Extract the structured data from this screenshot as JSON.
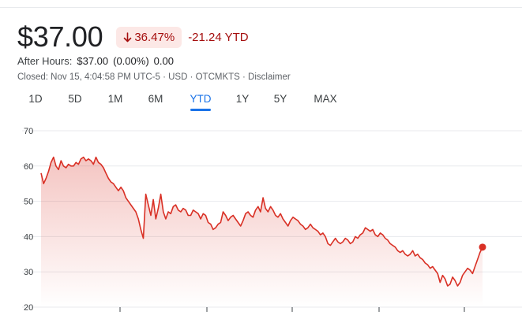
{
  "quote": {
    "price": "$37.00",
    "percent_change": "36.47%",
    "ytd_change": "-21.24 YTD",
    "after_hours_label": "After Hours:",
    "after_hours_price": "$37.00",
    "after_hours_percent": "(0.00%)",
    "after_hours_change": "0.00",
    "closed_text": "Closed: Nov 15, 4:04:58 PM UTC-5 · USD · OTCMKTS · ",
    "disclaimer": "Disclaimer",
    "down_color": "#a50e0e"
  },
  "range_tabs": [
    {
      "label": "1D",
      "active": false
    },
    {
      "label": "5D",
      "active": false
    },
    {
      "label": "1M",
      "active": false
    },
    {
      "label": "6M",
      "active": false
    },
    {
      "label": "YTD",
      "active": true
    },
    {
      "label": "1Y",
      "active": false
    },
    {
      "label": "5Y",
      "active": false
    },
    {
      "label": "MAX",
      "active": false
    }
  ],
  "chart_data": {
    "type": "area",
    "title": "",
    "xlabel": "",
    "ylabel": "",
    "ylim": [
      20,
      70
    ],
    "yticks": [
      "70",
      "60",
      "50",
      "40",
      "30",
      "20"
    ],
    "grid": true,
    "line_color": "#d93025",
    "y": [
      58,
      55,
      56.5,
      58.5,
      61,
      62.5,
      60,
      59,
      61.5,
      60,
      59.5,
      60.5,
      60,
      60,
      61,
      60.5,
      62,
      62.5,
      61.5,
      62,
      61.5,
      60.5,
      62.5,
      61,
      60.5,
      59.5,
      58,
      56.5,
      55.5,
      55,
      54,
      53,
      54,
      53,
      51,
      50,
      49,
      48,
      47,
      45,
      42,
      39.5,
      52,
      49,
      46,
      50.5,
      45,
      48,
      52,
      47,
      45,
      47,
      46.5,
      48.5,
      49,
      47.5,
      47,
      48,
      47.5,
      46,
      46,
      47.5,
      47,
      46.5,
      45,
      46.5,
      46,
      44,
      43.5,
      42,
      42.5,
      43.5,
      44,
      47,
      46,
      44.5,
      45.5,
      46,
      45,
      44,
      43,
      44.5,
      46.5,
      47,
      46,
      45.5,
      47.5,
      48.5,
      47,
      51,
      48,
      47,
      48.5,
      47.5,
      46,
      45.5,
      46.5,
      45,
      44,
      43,
      44.5,
      45.5,
      45,
      44.5,
      43.5,
      43,
      42,
      42.5,
      43.5,
      42.5,
      42,
      41.5,
      40.5,
      41,
      40,
      38,
      37.5,
      38.5,
      39.5,
      38.5,
      38,
      38.5,
      39.5,
      39,
      38,
      38.5,
      40,
      39.5,
      40.5,
      41,
      42.5,
      42,
      41.5,
      42,
      40.5,
      40,
      41,
      40.5,
      39.5,
      39,
      38,
      37.5,
      37,
      36,
      35.5,
      36,
      35,
      34.5,
      35,
      36,
      34.5,
      35,
      34,
      33.5,
      32.5,
      32,
      31,
      31.5,
      30.5,
      29.5,
      27,
      29,
      28,
      26,
      26.5,
      28.5,
      27.5,
      26,
      27,
      29,
      30,
      31,
      30.5,
      29.5,
      31.5,
      33.5,
      35.5,
      37
    ]
  }
}
